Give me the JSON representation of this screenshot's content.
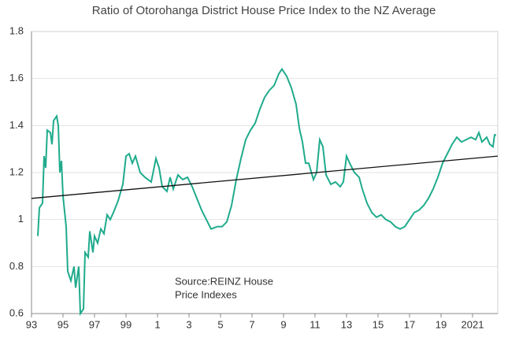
{
  "chart_data": {
    "type": "line",
    "title": "Ratio of Otorohanga District House Price Index to the NZ Average",
    "annotation": [
      "Source:REINZ House",
      "Price Indexes"
    ],
    "xlim": [
      1993,
      2022.6
    ],
    "ylim": [
      0.6,
      1.8
    ],
    "yticks": [
      0.6,
      0.8,
      1,
      1.2,
      1.4,
      1.6,
      1.8
    ],
    "xticks": [
      {
        "value": 1993,
        "label": "93"
      },
      {
        "value": 1995,
        "label": "95"
      },
      {
        "value": 1997,
        "label": "97"
      },
      {
        "value": 1999,
        "label": "99"
      },
      {
        "value": 2001,
        "label": "1"
      },
      {
        "value": 2003,
        "label": "3"
      },
      {
        "value": 2005,
        "label": "5"
      },
      {
        "value": 2007,
        "label": "7"
      },
      {
        "value": 2009,
        "label": "9"
      },
      {
        "value": 2011,
        "label": "11"
      },
      {
        "value": 2013,
        "label": "13"
      },
      {
        "value": 2015,
        "label": "15"
      },
      {
        "value": 2017,
        "label": "17"
      },
      {
        "value": 2019,
        "label": "19"
      },
      {
        "value": 2021,
        "label": "2021"
      }
    ],
    "grid": true,
    "series": [
      {
        "color": "#1fab8c",
        "x": [
          1993.4,
          1993.5,
          1993.7,
          1993.8,
          1993.9,
          1994.0,
          1994.2,
          1994.3,
          1994.4,
          1994.6,
          1994.7,
          1994.8,
          1994.9,
          1995.0,
          1995.2,
          1995.3,
          1995.5,
          1995.7,
          1995.8,
          1996.0,
          1996.1,
          1996.3,
          1996.4,
          1996.6,
          1996.7,
          1996.9,
          1997.0,
          1997.2,
          1997.4,
          1997.6,
          1997.8,
          1998.0,
          1998.2,
          1998.5,
          1998.8,
          1999.0,
          1999.2,
          1999.4,
          1999.6,
          1999.9,
          2000.2,
          2000.6,
          2000.9,
          2001.1,
          2001.3,
          2001.6,
          2001.8,
          2002.0,
          2002.3,
          2002.6,
          2002.9,
          2003.2,
          2003.5,
          2003.8,
          2004.1,
          2004.4,
          2004.8,
          2005.1,
          2005.4,
          2005.7,
          2006.0,
          2006.3,
          2006.6,
          2006.9,
          2007.2,
          2007.5,
          2007.8,
          2008.1,
          2008.4,
          2008.7,
          2008.9,
          2009.2,
          2009.5,
          2009.8,
          2010.0,
          2010.2,
          2010.4,
          2010.6,
          2010.9,
          2011.1,
          2011.3,
          2011.5,
          2011.7,
          2012.0,
          2012.3,
          2012.6,
          2012.8,
          2013.0,
          2013.2,
          2013.5,
          2013.8,
          2014.0,
          2014.3,
          2014.6,
          2014.9,
          2015.2,
          2015.5,
          2015.8,
          2016.1,
          2016.4,
          2016.7,
          2017.0,
          2017.3,
          2017.6,
          2017.9,
          2018.2,
          2018.5,
          2018.8,
          2019.1,
          2019.4,
          2019.7,
          2020.0,
          2020.3,
          2020.6,
          2020.9,
          2021.2,
          2021.4,
          2021.6,
          2021.9,
          2022.1,
          2022.3,
          2022.4,
          2022.5
        ],
        "values": [
          0.93,
          1.05,
          1.07,
          1.27,
          1.22,
          1.38,
          1.37,
          1.32,
          1.42,
          1.44,
          1.4,
          1.2,
          1.25,
          1.1,
          0.97,
          0.78,
          0.74,
          0.8,
          0.71,
          0.8,
          0.6,
          0.62,
          0.86,
          0.84,
          0.95,
          0.86,
          0.93,
          0.9,
          0.96,
          0.94,
          1.02,
          1.0,
          1.03,
          1.08,
          1.15,
          1.27,
          1.28,
          1.24,
          1.27,
          1.2,
          1.18,
          1.16,
          1.26,
          1.22,
          1.14,
          1.12,
          1.18,
          1.13,
          1.19,
          1.17,
          1.18,
          1.14,
          1.09,
          1.04,
          1.0,
          0.96,
          0.97,
          0.97,
          0.99,
          1.06,
          1.17,
          1.26,
          1.34,
          1.38,
          1.41,
          1.47,
          1.52,
          1.55,
          1.57,
          1.62,
          1.64,
          1.61,
          1.56,
          1.49,
          1.39,
          1.33,
          1.24,
          1.24,
          1.17,
          1.2,
          1.34,
          1.31,
          1.19,
          1.15,
          1.16,
          1.14,
          1.16,
          1.27,
          1.24,
          1.2,
          1.18,
          1.13,
          1.07,
          1.03,
          1.01,
          1.02,
          1.0,
          0.99,
          0.97,
          0.96,
          0.97,
          1.0,
          1.03,
          1.04,
          1.06,
          1.09,
          1.13,
          1.18,
          1.24,
          1.28,
          1.32,
          1.35,
          1.33,
          1.34,
          1.35,
          1.34,
          1.37,
          1.33,
          1.35,
          1.32,
          1.31,
          1.36,
          1.36
        ]
      },
      {
        "color": "#111111",
        "x": [
          1993,
          2022.6
        ],
        "values": [
          1.09,
          1.27
        ]
      }
    ]
  }
}
